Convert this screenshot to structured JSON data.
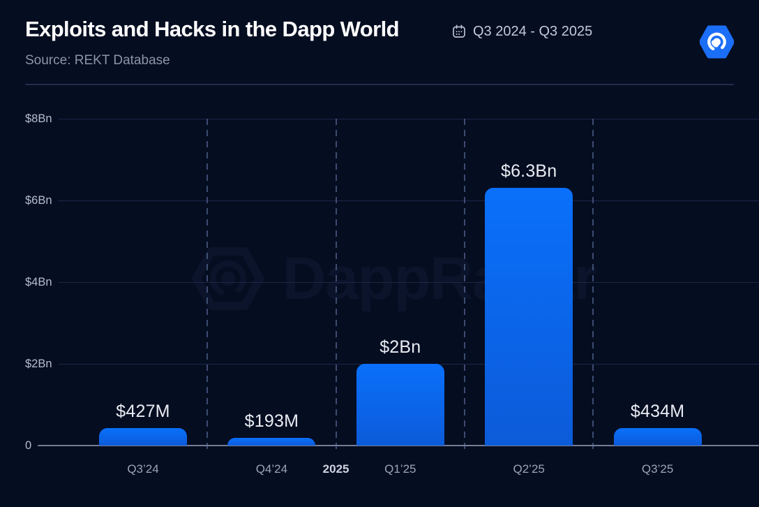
{
  "header": {
    "title": "Exploits and Hacks in the Dapp World",
    "date_range": "Q3 2024 - Q3 2025",
    "source": "Source: REKT Database"
  },
  "icons": {
    "calendar": "calendar-icon",
    "logo": "dappradar-hexagon-spiral-logo",
    "watermark_logo": "dappradar-hexagon-spiral-outline"
  },
  "watermark": {
    "text": "DappRadar"
  },
  "chart_data": {
    "type": "bar",
    "title": "Exploits and Hacks in the Dapp World",
    "source": "REKT Database",
    "categories": [
      "Q3’24",
      "Q4’24",
      "Q1’25",
      "Q2’25",
      "Q3’25"
    ],
    "values_usd_bn": [
      0.427,
      0.193,
      2.0,
      6.3,
      0.434
    ],
    "bar_labels": [
      "$427M",
      "$193M",
      "$2Bn",
      "$6.3Bn",
      "$434M"
    ],
    "year_marker": {
      "label": "2025",
      "after_index": 1
    },
    "ylabel": "",
    "xlabel": "",
    "ylim": [
      0,
      8
    ],
    "ytick_labels": [
      "0",
      "$2Bn",
      "$4Bn",
      "$6Bn",
      "$8Bn"
    ],
    "grid": "horizontal-solid, quarter-separators-dashed-vertical",
    "legend": "none",
    "colors": {
      "background": "#050d21",
      "bar_top": "#0a70fa",
      "bar_bottom": "#0c5bd9",
      "accent_blue": "#1b6ef7",
      "gridline": "#1b2747",
      "baseline": "#747e97"
    }
  }
}
